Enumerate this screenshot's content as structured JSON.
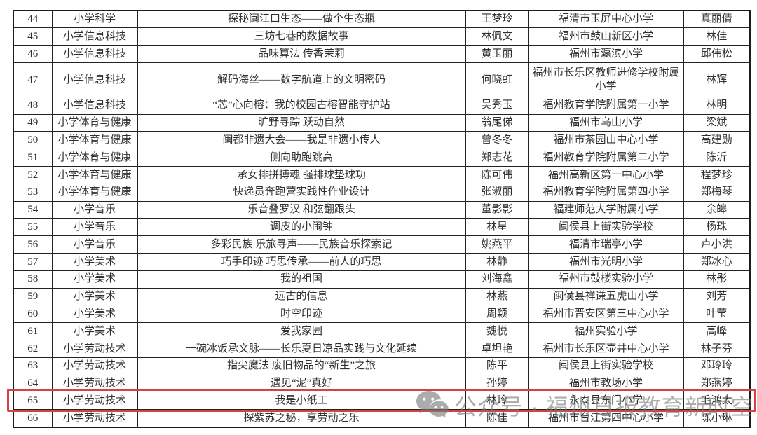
{
  "watermark": {
    "icon": "wechat-icon",
    "text": "公众号 · 福州日报教育新时空",
    "color": "#7a7a7a"
  },
  "highlight": {
    "color": "#d64141",
    "highlighted_row_number": "65"
  },
  "table": {
    "columns": [
      "num",
      "category",
      "title",
      "author",
      "school",
      "mentor"
    ],
    "rows": [
      {
        "num": "44",
        "category": "小学科学",
        "title": "探秘闽江口生态——做个生态瓶",
        "author": "王梦玲",
        "school": "福清市玉屏中心小学",
        "mentor": "真丽倩"
      },
      {
        "num": "45",
        "category": "小学信息科技",
        "title": "三坊七巷的数据故事",
        "author": "林佩文",
        "school": "福州市鼓山新区小学",
        "mentor": "林佳"
      },
      {
        "num": "46",
        "category": "小学信息科技",
        "title": "品味算法 传香茉莉",
        "author": "黄玉丽",
        "school": "福州市瀛滨小学",
        "mentor": "邱伟松"
      },
      {
        "num": "47",
        "category": "小学信息科技",
        "title": "解码海丝——数字航道上的文明密码",
        "author": "何晓虹",
        "school": "福州市长乐区教师进修学校附属小学",
        "mentor": "林辉",
        "tall": true
      },
      {
        "num": "48",
        "category": "小学信息科技",
        "title": "“芯”心向榕：我的校园古榕智能守护站",
        "author": "吴秀玉",
        "school": "福州教育学院附属第一小学",
        "mentor": "林明"
      },
      {
        "num": "49",
        "category": "小学体育与健康",
        "title": "旷野寻踪 跃动自然",
        "author": "翁尾俤",
        "school": "福州市乌山小学",
        "mentor": "梁斌"
      },
      {
        "num": "50",
        "category": "小学体育与健康",
        "title": "闽都非遗大会——我是非遗小传人",
        "author": "曾冬冬",
        "school": "福州市茶园山中心小学",
        "mentor": "高建勋"
      },
      {
        "num": "51",
        "category": "小学体育与健康",
        "title": "侧向助跑跳高",
        "author": "郑志花",
        "school": "福州教育学院附属第二小学",
        "mentor": "陈沂"
      },
      {
        "num": "52",
        "category": "小学体育与健康",
        "title": "承女排拼搏魂 强排球垫球功",
        "author": "陈可伟",
        "school": "福州高新区第一中心小学",
        "mentor": "程梦珍"
      },
      {
        "num": "53",
        "category": "小学体育与健康",
        "title": "快递员奔跑营实践性作业设计",
        "author": "张淑丽",
        "school": "福州教育学院附属第四小学",
        "mentor": "郑梅琴"
      },
      {
        "num": "54",
        "category": "小学音乐",
        "title": "乐音叠罗汉 和弦翻跟头",
        "author": "董影影",
        "school": "福建师范大学附属小学",
        "mentor": "余皞"
      },
      {
        "num": "55",
        "category": "小学音乐",
        "title": "调皮的小闹钟",
        "author": "林星",
        "school": "闽侯县上街实验学校",
        "mentor": "杨珠"
      },
      {
        "num": "56",
        "category": "小学音乐",
        "title": "多彩民族 乐旅寻声——民族音乐探索记",
        "author": "姚燕平",
        "school": "福清市瑞亭小学",
        "mentor": "卢小洪"
      },
      {
        "num": "57",
        "category": "小学美术",
        "title": "巧手印迹 巧思传承——前人的巧思",
        "author": "林静",
        "school": "福州市光明小学",
        "mentor": "郑冰心"
      },
      {
        "num": "58",
        "category": "小学美术",
        "title": "我的祖国",
        "author": "刘海鑫",
        "school": "福州市鼓楼实验小学",
        "mentor": "林彤"
      },
      {
        "num": "59",
        "category": "小学美术",
        "title": "远古的信息",
        "author": "林燕",
        "school": "闽侯县祥谦五虎山小学",
        "mentor": "刘芳"
      },
      {
        "num": "60",
        "category": "小学美术",
        "title": "时空印迹",
        "author": "周颖",
        "school": "福州市晋安区第三中心小学",
        "mentor": "叶莹"
      },
      {
        "num": "61",
        "category": "小学美术",
        "title": "爱我家园",
        "author": "魏悦",
        "school": "福州实验小学",
        "mentor": "高峰"
      },
      {
        "num": "62",
        "category": "小学劳动技术",
        "title": "一碗冰饭承文脉——长乐夏日凉品实践与文化延续",
        "author": "卓坦艳",
        "school": "福州市长乐区壶井中心小学",
        "mentor": "林子芬"
      },
      {
        "num": "63",
        "category": "小学劳动技术",
        "title": "指尖魔法 废旧物品的“新生”之旅",
        "author": "陈平",
        "school": "闽侯县上街实验学校",
        "mentor": "邓玲玲"
      },
      {
        "num": "64",
        "category": "小学劳动技术",
        "title": "遇见“泥”真好",
        "author": "孙婷",
        "school": "福州市教场小学",
        "mentor": "郑燕婷"
      },
      {
        "num": "65",
        "category": "小学劳动技术",
        "title": "我是小纸工",
        "author": "林玲",
        "school": "永泰县东门小学",
        "mentor": "毛鸿太",
        "highlighted": true
      },
      {
        "num": "66",
        "category": "小学劳动技术",
        "title": "探紫苏之秘，享劳动之乐",
        "author": "陈佳",
        "school": "福州市台江第四中心小学",
        "mentor": "陈小琳"
      }
    ]
  }
}
